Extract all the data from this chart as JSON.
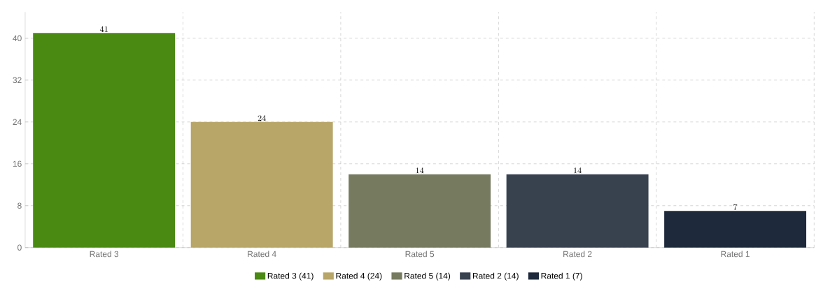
{
  "chart_data": {
    "type": "bar",
    "categories": [
      "Rated 3",
      "Rated 4",
      "Rated 5",
      "Rated 2",
      "Rated 1"
    ],
    "series": [
      {
        "name": "Rated 3 (41)",
        "color": "#4a8a13",
        "values": [
          41,
          null,
          null,
          null,
          null
        ]
      },
      {
        "name": "Rated 4 (24)",
        "color": "#b8a668",
        "values": [
          null,
          24,
          null,
          null,
          null
        ]
      },
      {
        "name": "Rated 5 (14)",
        "color": "#767a5f",
        "values": [
          null,
          null,
          14,
          null,
          null
        ]
      },
      {
        "name": "Rated 2 (14)",
        "color": "#38424f",
        "values": [
          null,
          null,
          null,
          14,
          null
        ]
      },
      {
        "name": "Rated 1 (7)",
        "color": "#1e2a3c",
        "values": [
          null,
          null,
          null,
          null,
          7
        ]
      }
    ],
    "ylim": [
      0,
      45
    ],
    "yticks": [
      0,
      8,
      16,
      24,
      32,
      40
    ],
    "grid": true,
    "legend": "bottom",
    "data_labels": true
  }
}
